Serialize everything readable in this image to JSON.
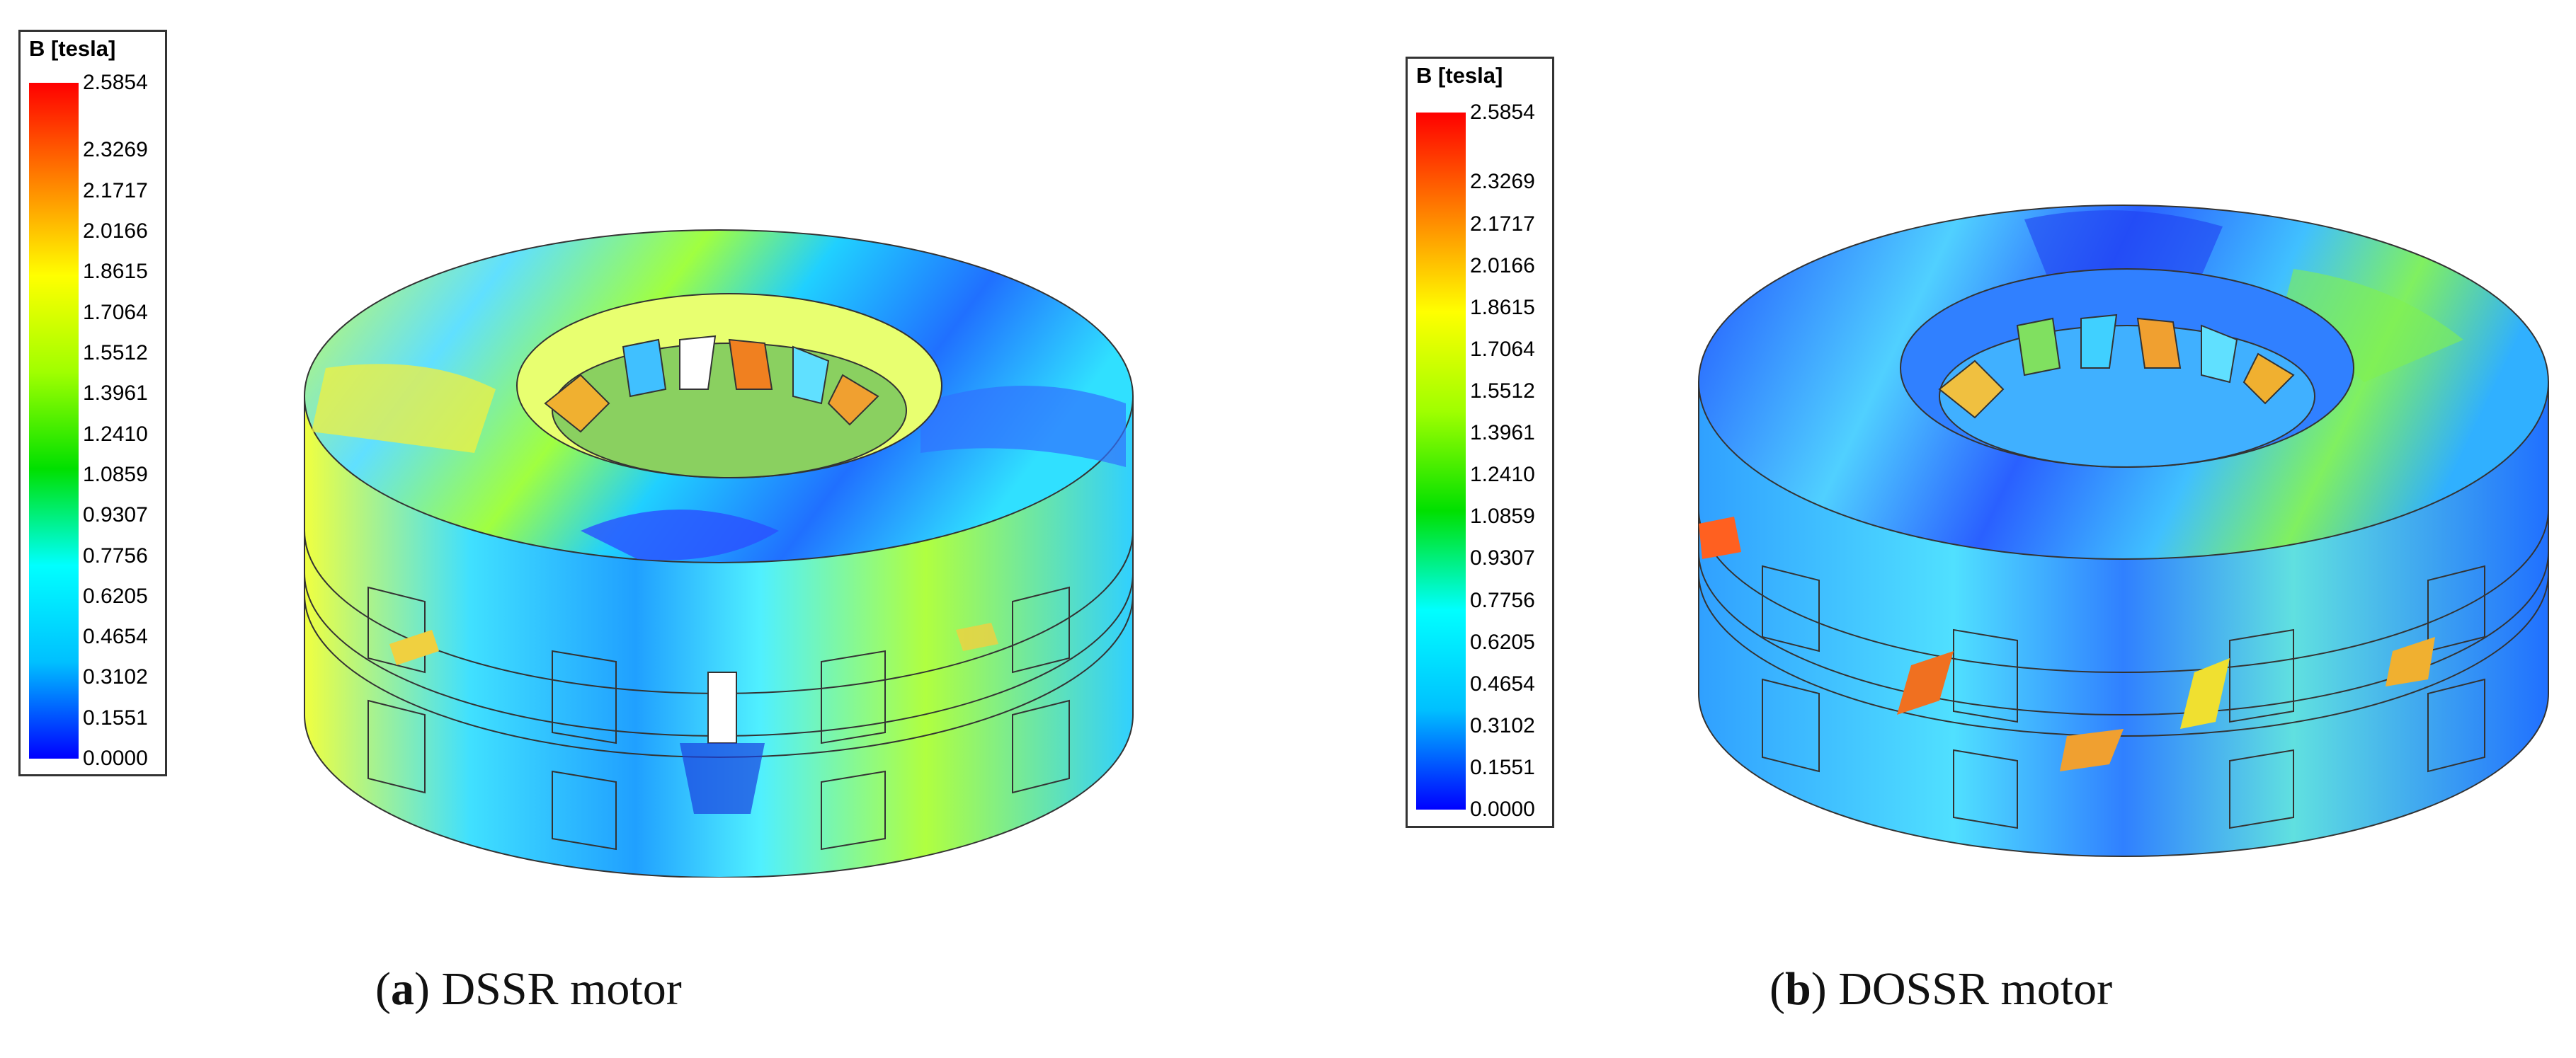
{
  "colorbar": {
    "title": "B [tesla]",
    "ticks": [
      "2.5854",
      "2.3269",
      "2.1717",
      "2.0166",
      "1.8615",
      "1.7064",
      "1.5512",
      "1.3961",
      "1.2410",
      "1.0859",
      "0.9307",
      "0.7756",
      "0.6205",
      "0.4654",
      "0.3102",
      "0.1551",
      "0.0000"
    ],
    "tick_values": [
      2.5854,
      2.3269,
      2.1717,
      2.0166,
      1.8615,
      1.7064,
      1.5512,
      1.3961,
      1.241,
      1.0859,
      0.9307,
      0.7756,
      0.6205,
      0.4654,
      0.3102,
      0.1551,
      0.0
    ],
    "colors": [
      "#0000ff",
      "#00c0ff",
      "#00ffff",
      "#00e000",
      "#a0ff00",
      "#ffff00",
      "#ff8000",
      "#ff0000"
    ]
  },
  "panels": [
    {
      "letter": "a",
      "paren_open": "(",
      "paren_close": ")",
      "label": " DSSR motor"
    },
    {
      "letter": "b",
      "paren_open": "(",
      "paren_close": ")",
      "label": " DOSSR motor"
    }
  ]
}
